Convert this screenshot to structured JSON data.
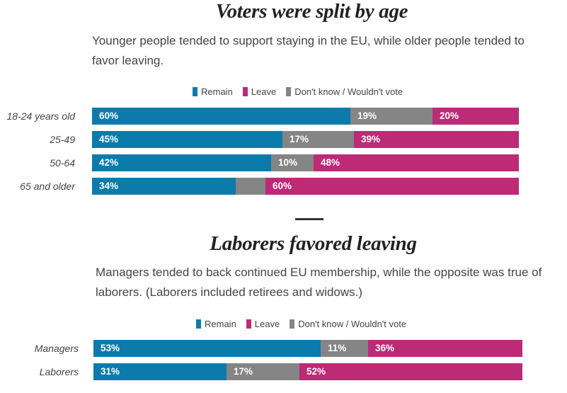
{
  "colors": {
    "remain": "#0a7bab",
    "leave": "#bd2a76",
    "dontknow": "#858585"
  },
  "legend": {
    "remain": "Remain",
    "leave": "Leave",
    "dontknow": "Don't know / Wouldn't vote"
  },
  "chart_data": [
    {
      "type": "bar",
      "orientation": "horizontal-stacked",
      "title": "Voters were split by age",
      "subtitle": "Younger people tended to support staying in the EU, while older people tended to favor leaving.",
      "categories": [
        "18-24 years old",
        "25-49",
        "50-64",
        "65 and older"
      ],
      "series": [
        {
          "name": "Remain",
          "key": "remain",
          "values": [
            60,
            45,
            42,
            34
          ],
          "labels": [
            "60%",
            "45%",
            "42%",
            "34%"
          ]
        },
        {
          "name": "Don't know / Wouldn't vote",
          "key": "dontknow",
          "values": [
            19,
            17,
            10,
            7
          ],
          "labels": [
            "19%",
            "17%",
            "10%",
            ""
          ]
        },
        {
          "name": "Leave",
          "key": "leave",
          "values": [
            20,
            39,
            48,
            60
          ],
          "labels": [
            "20%",
            "39%",
            "48%",
            "60%"
          ]
        }
      ],
      "xlim": [
        0,
        100
      ]
    },
    {
      "type": "bar",
      "orientation": "horizontal-stacked",
      "title": "Laborers favored leaving",
      "subtitle": "Managers tended to back continued EU membership, while the opposite was true of laborers. (Laborers included retirees and widows.)",
      "categories": [
        "Managers",
        "Laborers"
      ],
      "series": [
        {
          "name": "Remain",
          "key": "remain",
          "values": [
            53,
            31
          ],
          "labels": [
            "53%",
            "31%"
          ]
        },
        {
          "name": "Don't know / Wouldn't vote",
          "key": "dontknow",
          "values": [
            11,
            17
          ],
          "labels": [
            "11%",
            "17%"
          ]
        },
        {
          "name": "Leave",
          "key": "leave",
          "values": [
            36,
            52
          ],
          "labels": [
            "36%",
            "52%"
          ]
        }
      ],
      "xlim": [
        0,
        100
      ]
    }
  ]
}
